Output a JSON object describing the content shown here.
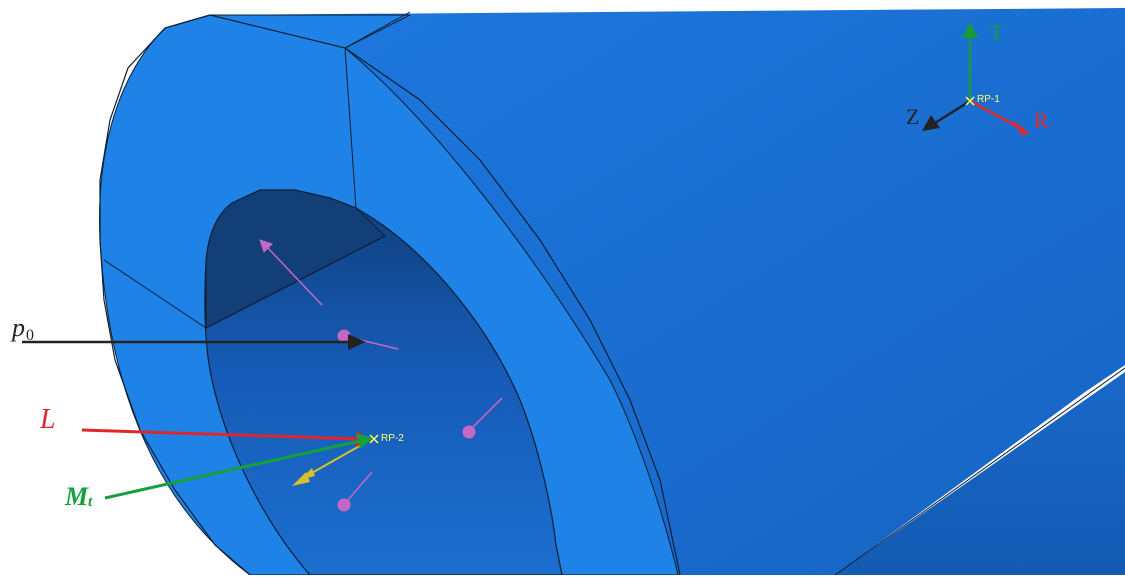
{
  "labels": {
    "p0_main": "p",
    "p0_sub": "0",
    "L": "L",
    "Mt_main": "M",
    "Mt_sub": "t",
    "T": "T",
    "R": "R",
    "Z": "Z",
    "rp1": "RP-1",
    "rp2": "RP-2"
  },
  "colors": {
    "background": "#ffffff",
    "pipe_outer_surface": "#1b6fd6",
    "pipe_end_face": "#1f82e6",
    "bore_surface": "#165ab5",
    "edge_line": "#0d1f33",
    "load_arrow_pressure": "#222222",
    "load_arrow_axial": "#e0262b",
    "load_arrow_torque": "#14a03c",
    "local_axis_T": "#169a3a",
    "local_axis_R": "#e02a2a",
    "local_axis_Z": "#222222",
    "reference_point_marker": "#ffff66",
    "pressure_symbol": "#c468c6",
    "moment_symbol": "#d7c12a"
  }
}
